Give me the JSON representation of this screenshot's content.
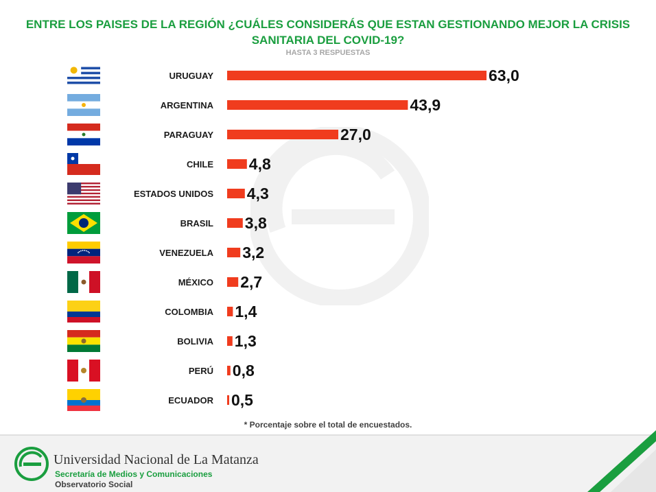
{
  "header": {
    "title_line1": "ENTRE LOS PAISES DE LA REGIÓN ¿CUÁLES CONSIDERÁS QUE ESTAN GESTIONANDO MEJOR LA CRISIS",
    "title_line2": "SANITARIA DEL COVID-19?",
    "subtitle": "HASTA 3 RESPUESTAS"
  },
  "chart_data": {
    "type": "bar",
    "orientation": "horizontal",
    "title": "ENTRE LOS PAISES DE LA REGIÓN ¿CUÁLES CONSIDERÁS QUE ESTAN GESTIONANDO MEJOR LA CRISIS SANITARIA DEL COVID-19?",
    "subtitle": "HASTA 3 RESPUESTAS",
    "categories": [
      "URUGUAY",
      "ARGENTINA",
      "PARAGUAY",
      "CHILE",
      "ESTADOS UNIDOS",
      "BRASIL",
      "VENEZUELA",
      "MÉXICO",
      "COLOMBIA",
      "BOLIVIA",
      "PERÚ",
      "ECUADOR"
    ],
    "values": [
      63.0,
      43.9,
      27.0,
      4.8,
      4.3,
      3.8,
      3.2,
      2.7,
      1.4,
      1.3,
      0.8,
      0.5
    ],
    "value_labels": [
      "63,0",
      "43,9",
      "27,0",
      "4,8",
      "4,3",
      "3,8",
      "3,2",
      "2,7",
      "1,4",
      "1,3",
      "0,8",
      "0,5"
    ],
    "flags": [
      "uruguay-flag",
      "argentina-flag",
      "paraguay-flag",
      "chile-flag",
      "usa-flag",
      "brazil-flag",
      "venezuela-flag",
      "mexico-flag",
      "colombia-flag",
      "bolivia-flag",
      "peru-flag",
      "ecuador-flag"
    ],
    "unit": "%",
    "xlim": [
      0,
      63
    ],
    "bar_color": "#f03c1e",
    "grid": false,
    "legend": "none"
  },
  "footnote": "* Porcentaje sobre el total de encuestados.",
  "footer": {
    "university": "Universidad Nacional de La Matanza",
    "secretariat": "Secretaría de Medios y Comunicaciones",
    "observatory": "Observatorio Social"
  },
  "colors": {
    "brand_green": "#1a9e3f",
    "bar": "#f03c1e"
  }
}
